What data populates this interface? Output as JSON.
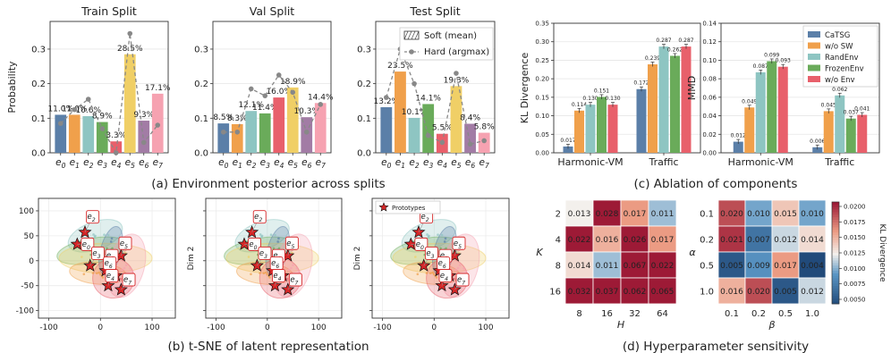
{
  "chart_data": [
    {
      "id": "env-posterior",
      "type": "bar",
      "caption": "(a) Environment posterior across splits",
      "ylabel": "Probability",
      "categories": [
        "e_0",
        "e_1",
        "e_2",
        "e_3",
        "e_4",
        "e_5",
        "e_6",
        "e_7"
      ],
      "cat_base": "e",
      "cat_sub": [
        "0",
        "1",
        "2",
        "3",
        "4",
        "5",
        "6",
        "7"
      ],
      "ylim": [
        0,
        0.38
      ],
      "yticks": [
        "0.0",
        "0.1",
        "0.2",
        "0.3"
      ],
      "colors": [
        "#5b7fa8",
        "#f0a04b",
        "#8ec5c2",
        "#6aab5a",
        "#e8606b",
        "#f0cf66",
        "#a27ca5",
        "#f6a2b1"
      ],
      "legend": [
        "Soft (mean)",
        "Hard (argmax)"
      ],
      "panels": [
        {
          "title": "Train Split",
          "soft": [
            0.11,
            0.11,
            0.106,
            0.089,
            0.033,
            0.285,
            0.093,
            0.171
          ],
          "labels": [
            "11.0%",
            "11.0%",
            "10.6%",
            "8.9%",
            "3.3%",
            "28.5%",
            "9.3%",
            "17.1%"
          ],
          "hard": [
            0.085,
            0.125,
            0.155,
            0.07,
            0.0,
            0.345,
            0.03,
            0.08
          ]
        },
        {
          "title": "Val Split",
          "soft": [
            0.085,
            0.083,
            0.121,
            0.114,
            0.16,
            0.189,
            0.103,
            0.144
          ],
          "labels": [
            "8.5%",
            "8.3%",
            "12.1%",
            "11.4%",
            "16.0%",
            "18.9%",
            "10.3%",
            "14.4%"
          ],
          "hard": [
            0.06,
            0.06,
            0.185,
            0.165,
            0.225,
            0.175,
            0.06,
            0.14
          ]
        },
        {
          "title": "Test Split",
          "soft": [
            0.132,
            0.235,
            0.101,
            0.141,
            0.055,
            0.193,
            0.084,
            0.058
          ],
          "labels": [
            "13.2%",
            "23.5%",
            "10.1%",
            "14.1%",
            "5.5%",
            "19.3%",
            "8.4%",
            "5.8%"
          ],
          "hard": [
            0.16,
            0.3,
            0.2,
            0.05,
            0.03,
            0.23,
            0.025,
            0.035
          ]
        }
      ]
    },
    {
      "id": "ablation",
      "type": "bar",
      "caption": "(c) Ablation of components",
      "categories": [
        "Harmonic-VM",
        "Traffic"
      ],
      "series_names": [
        "CaTSG",
        "w/o SW",
        "RandEnv",
        "FrozenEnv",
        "w/o Env"
      ],
      "colors": [
        "#5b7fa8",
        "#f0a04b",
        "#8ec5c2",
        "#6aab5a",
        "#e8606b"
      ],
      "panels": [
        {
          "ylabel": "KL Divergence",
          "ylim": [
            0,
            0.35
          ],
          "yticks": [
            "0.00",
            "0.05",
            "0.10",
            "0.15",
            "0.20",
            "0.25",
            "0.30",
            "0.35"
          ],
          "values": [
            [
              0.017,
              0.114,
              0.13,
              0.151,
              0.13
            ],
            [
              0.172,
              0.239,
              0.287,
              0.262,
              0.287
            ]
          ],
          "labels": [
            [
              "0.017",
              "0.114",
              "0.130",
              "0.151",
              "0.130"
            ],
            [
              "0.172",
              "0.239",
              "0.287",
              "0.262",
              "0.287"
            ]
          ]
        },
        {
          "ylabel": "MMD",
          "ylim": [
            0,
            0.14
          ],
          "yticks": [
            "0.00",
            "0.02",
            "0.04",
            "0.06",
            "0.08",
            "0.10",
            "0.12",
            "0.14"
          ],
          "values": [
            [
              0.012,
              0.049,
              0.087,
              0.099,
              0.093
            ],
            [
              0.006,
              0.045,
              0.062,
              0.037,
              0.041
            ]
          ],
          "labels": [
            [
              "0.012",
              "0.049",
              "0.087",
              "0.099",
              "0.093"
            ],
            [
              "0.006",
              "0.045",
              "0.062",
              "0.037",
              "0.041"
            ]
          ]
        }
      ]
    },
    {
      "id": "tsne",
      "type": "scatter",
      "caption": "(b) t-SNE of latent representation",
      "ylabel": "Dim 2",
      "xticks": [
        "-100",
        "0",
        "100"
      ],
      "yticks": [
        "100",
        "50",
        "0",
        "-50",
        "-100"
      ],
      "legend": "Prototypes",
      "prototypes": [
        {
          "sub": "2",
          "x": -30,
          "y": 57,
          "lx": -15,
          "ly": 88
        },
        {
          "sub": "0",
          "x": -45,
          "y": 33,
          "lx": -25,
          "ly": 33
        },
        {
          "sub": "5",
          "x": 40,
          "y": 10,
          "lx": 48,
          "ly": 35
        },
        {
          "sub": "3",
          "x": -20,
          "y": -10,
          "lx": -5,
          "ly": 15
        },
        {
          "sub": "1",
          "x": 10,
          "y": -20,
          "lx": 22,
          "ly": 10
        },
        {
          "sub": "6",
          "x": 30,
          "y": -30,
          "lx": 18,
          "ly": -5
        },
        {
          "sub": "4",
          "x": 15,
          "y": -50,
          "lx": 22,
          "ly": -30
        },
        {
          "sub": "7",
          "x": 40,
          "y": -58,
          "lx": 55,
          "ly": -38
        }
      ]
    },
    {
      "id": "hyperparam",
      "type": "heatmap",
      "caption": "(d) Hyperparameter sensitivity",
      "cbar_label": "KL Divergence",
      "cbar_ticks": [
        "0.0200",
        "0.0175",
        "0.0150",
        "0.0125",
        "0.0100",
        "0.0075",
        "0.0050"
      ],
      "panels": [
        {
          "ylabel": "K",
          "xlabel": "H",
          "rows": [
            "2",
            "4",
            "8",
            "16"
          ],
          "cols": [
            "8",
            "16",
            "32",
            "64"
          ],
          "values": [
            [
              0.013,
              0.028,
              0.017,
              0.011
            ],
            [
              0.022,
              0.016,
              0.026,
              0.017
            ],
            [
              0.014,
              0.011,
              0.067,
              0.022
            ],
            [
              0.032,
              0.037,
              0.062,
              0.065
            ]
          ],
          "labels": [
            [
              "0.013",
              "0.028",
              "0.017",
              "0.011"
            ],
            [
              "0.022",
              "0.016",
              "0.026",
              "0.017"
            ],
            [
              "0.014",
              "0.011",
              "0.067",
              "0.022"
            ],
            [
              "0.032",
              "0.037",
              "0.062",
              "0.065"
            ]
          ]
        },
        {
          "ylabel": "α",
          "xlabel": "β",
          "rows": [
            "0.1",
            "0.2",
            "0.5",
            "1.0"
          ],
          "cols": [
            "0.1",
            "0.2",
            "0.5",
            "1.0"
          ],
          "values": [
            [
              0.02,
              0.01,
              0.015,
              0.01
            ],
            [
              0.021,
              0.007,
              0.012,
              0.014
            ],
            [
              0.005,
              0.009,
              0.017,
              0.004
            ],
            [
              0.016,
              0.02,
              0.005,
              0.012
            ]
          ],
          "labels": [
            [
              "0.020",
              "0.010",
              "0.015",
              "0.010"
            ],
            [
              "0.021",
              "0.007",
              "0.012",
              "0.014"
            ],
            [
              "0.005",
              "0.009",
              "0.017",
              "0.004"
            ],
            [
              "0.016",
              "0.020",
              "0.005",
              "0.012"
            ]
          ]
        }
      ]
    }
  ]
}
